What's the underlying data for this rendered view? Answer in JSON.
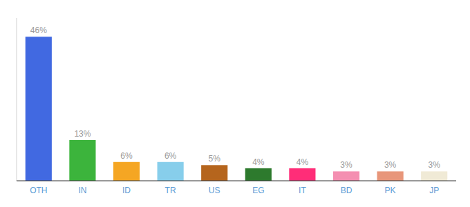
{
  "chart_data": {
    "type": "bar",
    "categories": [
      "OTH",
      "IN",
      "ID",
      "TR",
      "US",
      "EG",
      "IT",
      "BD",
      "PK",
      "JP"
    ],
    "values": [
      46,
      13,
      6,
      6,
      5,
      4,
      4,
      3,
      3,
      3
    ],
    "value_labels": [
      "46%",
      "13%",
      "6%",
      "6%",
      "5%",
      "4%",
      "4%",
      "3%",
      "3%",
      "3%"
    ],
    "colors": [
      "#4169e1",
      "#3cb43c",
      "#f5a623",
      "#87ceeb",
      "#b5651d",
      "#2d7a2d",
      "#ff2d78",
      "#f48fb1",
      "#e8967a",
      "#f0ead6"
    ],
    "ylim": [
      0,
      52
    ],
    "data_labels": true,
    "tick_labels": "x"
  }
}
